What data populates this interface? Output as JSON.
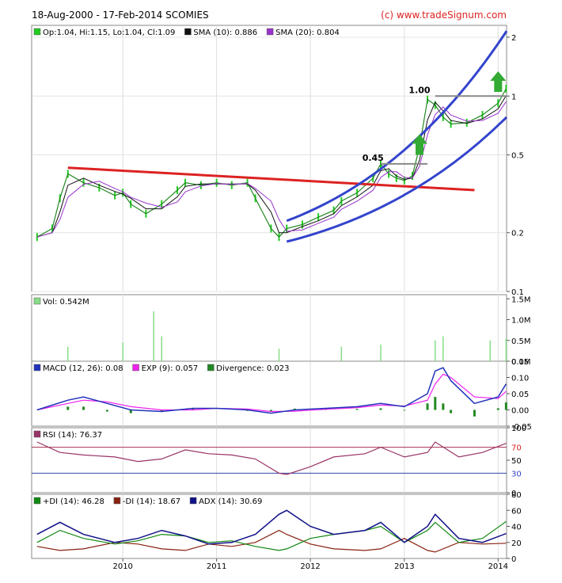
{
  "header": {
    "title": "18-Aug-2000 - 17-Feb-2014 SCOMIES",
    "credit": "(c) www.tradeSignum.com"
  },
  "colors": {
    "ohlc": "#22cc22",
    "sma10": "#111111",
    "sma20": "#9933cc",
    "channel": "#3344cc",
    "resistance": "#dd2222",
    "level": "#888888",
    "arrow": "#33aa33",
    "volume": "#88dd88",
    "macd": "#2233bb",
    "exp": "#ee22ee",
    "divergence": "#228822",
    "rsi": "#993366",
    "rsi_fill": "#ee3344",
    "rsi_low_fill": "#3344cc",
    "di_plus": "#118811",
    "di_minus": "#882211",
    "adx": "#111188"
  },
  "chart_data": [
    {
      "panel": "price",
      "type": "line",
      "y_scale": "log",
      "ylim": [
        0.1,
        2.3
      ],
      "yticks": [
        "0.1",
        "0.2",
        "0.5",
        "1",
        "2"
      ],
      "legend": [
        {
          "color": "ohlc",
          "label": "Op:1.04, Hi:1.15, Lo:1.04, Cl:1.09"
        },
        {
          "color": "sma10",
          "label": "SMA (10): 0.886"
        },
        {
          "color": "sma20",
          "label": "SMA (20): 0.804"
        }
      ],
      "x_dates": [
        "2009-02",
        "2009-04",
        "2009-05",
        "2009-06",
        "2009-08",
        "2009-10",
        "2009-12",
        "2010-01",
        "2010-02",
        "2010-04",
        "2010-06",
        "2010-08",
        "2010-09",
        "2010-11",
        "2011-01",
        "2011-03",
        "2011-05",
        "2011-06",
        "2011-08",
        "2011-09",
        "2011-10",
        "2011-12",
        "2012-02",
        "2012-04",
        "2012-05",
        "2012-07",
        "2012-09",
        "2012-10",
        "2012-11",
        "2012-12",
        "2013-01",
        "2013-02",
        "2013-03",
        "2013-04",
        "2013-05",
        "2013-06",
        "2013-07",
        "2013-09",
        "2013-11",
        "2014-01",
        "2014-02"
      ],
      "close": [
        0.19,
        0.21,
        0.3,
        0.4,
        0.36,
        0.34,
        0.31,
        0.32,
        0.28,
        0.25,
        0.28,
        0.33,
        0.36,
        0.35,
        0.36,
        0.35,
        0.36,
        0.3,
        0.21,
        0.19,
        0.21,
        0.22,
        0.24,
        0.26,
        0.29,
        0.32,
        0.38,
        0.45,
        0.4,
        0.38,
        0.37,
        0.39,
        0.55,
        0.96,
        0.9,
        0.78,
        0.72,
        0.73,
        0.8,
        0.92,
        1.09
      ],
      "annotations": [
        {
          "text": "1.00",
          "value": 1.0
        },
        {
          "text": "0.45",
          "value": 0.45
        }
      ]
    },
    {
      "panel": "volume",
      "type": "bar",
      "ylim": [
        0,
        1.6
      ],
      "yticks": [
        "0.0M",
        "0.5M",
        "1.0M",
        "1.5M"
      ],
      "legend": [
        {
          "color": "volume",
          "label": "Vol: 0.542M"
        }
      ],
      "spikes": [
        {
          "date": "2009-06",
          "value": 0.35
        },
        {
          "date": "2010-01",
          "value": 0.45
        },
        {
          "date": "2010-05",
          "value": 1.2
        },
        {
          "date": "2010-06",
          "value": 0.6
        },
        {
          "date": "2011-09",
          "value": 0.3
        },
        {
          "date": "2012-05",
          "value": 0.35
        },
        {
          "date": "2012-10",
          "value": 0.4
        },
        {
          "date": "2013-05",
          "value": 0.5
        },
        {
          "date": "2013-06",
          "value": 0.6
        },
        {
          "date": "2013-12",
          "value": 0.5
        },
        {
          "date": "2014-02",
          "value": 0.54
        }
      ]
    },
    {
      "panel": "macd",
      "type": "line",
      "ylim": [
        -0.05,
        0.15
      ],
      "yticks": [
        "-0.05",
        "0.00",
        "0.05",
        "0.10",
        "0.15"
      ],
      "legend": [
        {
          "color": "macd",
          "label": "MACD (12, 26): 0.08"
        },
        {
          "color": "exp",
          "label": "EXP (9): 0.057"
        },
        {
          "color": "divergence",
          "label": "Divergence: 0.023"
        }
      ],
      "x_dates": [
        "2009-02",
        "2009-06",
        "2009-08",
        "2009-11",
        "2010-02",
        "2010-06",
        "2010-10",
        "2011-01",
        "2011-05",
        "2011-08",
        "2011-11",
        "2012-03",
        "2012-07",
        "2012-10",
        "2013-01",
        "2013-04",
        "2013-05",
        "2013-06",
        "2013-07",
        "2013-10",
        "2014-01",
        "2014-02"
      ],
      "macd": [
        0.0,
        0.03,
        0.04,
        0.02,
        0.0,
        -0.005,
        0.005,
        0.005,
        0.0,
        -0.01,
        0.0,
        0.005,
        0.01,
        0.02,
        0.01,
        0.05,
        0.12,
        0.13,
        0.09,
        0.02,
        0.04,
        0.08
      ],
      "exp": [
        0.0,
        0.02,
        0.03,
        0.025,
        0.01,
        0.0,
        0.0,
        0.005,
        0.003,
        -0.005,
        -0.004,
        0.002,
        0.007,
        0.015,
        0.012,
        0.03,
        0.08,
        0.11,
        0.1,
        0.04,
        0.035,
        0.057
      ]
    },
    {
      "panel": "rsi",
      "type": "line",
      "ylim": [
        0,
        100
      ],
      "yticks": [
        "0",
        "50",
        "100"
      ],
      "ref_lines": [
        {
          "value": 70,
          "label": "70"
        },
        {
          "value": 30,
          "label": "30"
        }
      ],
      "legend": [
        {
          "color": "rsi",
          "label": "RSI (14): 76.37"
        }
      ],
      "x_dates": [
        "2009-02",
        "2009-05",
        "2009-08",
        "2009-12",
        "2010-03",
        "2010-06",
        "2010-09",
        "2010-12",
        "2011-03",
        "2011-06",
        "2011-09",
        "2011-10",
        "2012-01",
        "2012-04",
        "2012-08",
        "2012-10",
        "2013-01",
        "2013-04",
        "2013-05",
        "2013-08",
        "2013-11",
        "2014-02"
      ],
      "rsi": [
        78,
        62,
        58,
        55,
        48,
        52,
        66,
        60,
        58,
        52,
        30,
        28,
        40,
        55,
        60,
        70,
        55,
        62,
        78,
        55,
        62,
        76
      ]
    },
    {
      "panel": "dmi",
      "type": "line",
      "ylim": [
        0,
        80
      ],
      "yticks": [
        "0",
        "20",
        "40",
        "60",
        "80"
      ],
      "xticks": [
        "2010",
        "2011",
        "2012",
        "2013",
        "2014"
      ],
      "legend": [
        {
          "color": "di_plus",
          "label": "+DI (14): 46.28"
        },
        {
          "color": "di_minus",
          "label": "-DI (14): 18.67"
        },
        {
          "color": "adx",
          "label": "ADX (14): 30.69"
        }
      ],
      "x_dates": [
        "2009-02",
        "2009-05",
        "2009-08",
        "2009-12",
        "2010-03",
        "2010-06",
        "2010-09",
        "2010-12",
        "2011-03",
        "2011-06",
        "2011-09",
        "2011-10",
        "2012-01",
        "2012-04",
        "2012-08",
        "2012-10",
        "2013-01",
        "2013-04",
        "2013-05",
        "2013-08",
        "2013-11",
        "2014-02"
      ],
      "di_plus": [
        20,
        35,
        25,
        18,
        22,
        30,
        28,
        20,
        22,
        15,
        10,
        12,
        25,
        30,
        35,
        40,
        20,
        35,
        45,
        20,
        25,
        46
      ],
      "di_minus": [
        15,
        10,
        12,
        20,
        18,
        12,
        10,
        18,
        15,
        20,
        35,
        30,
        18,
        12,
        10,
        12,
        25,
        10,
        8,
        20,
        18,
        19
      ],
      "adx": [
        30,
        45,
        30,
        20,
        25,
        35,
        28,
        18,
        20,
        30,
        55,
        60,
        40,
        30,
        35,
        45,
        20,
        40,
        55,
        25,
        20,
        31
      ]
    }
  ]
}
